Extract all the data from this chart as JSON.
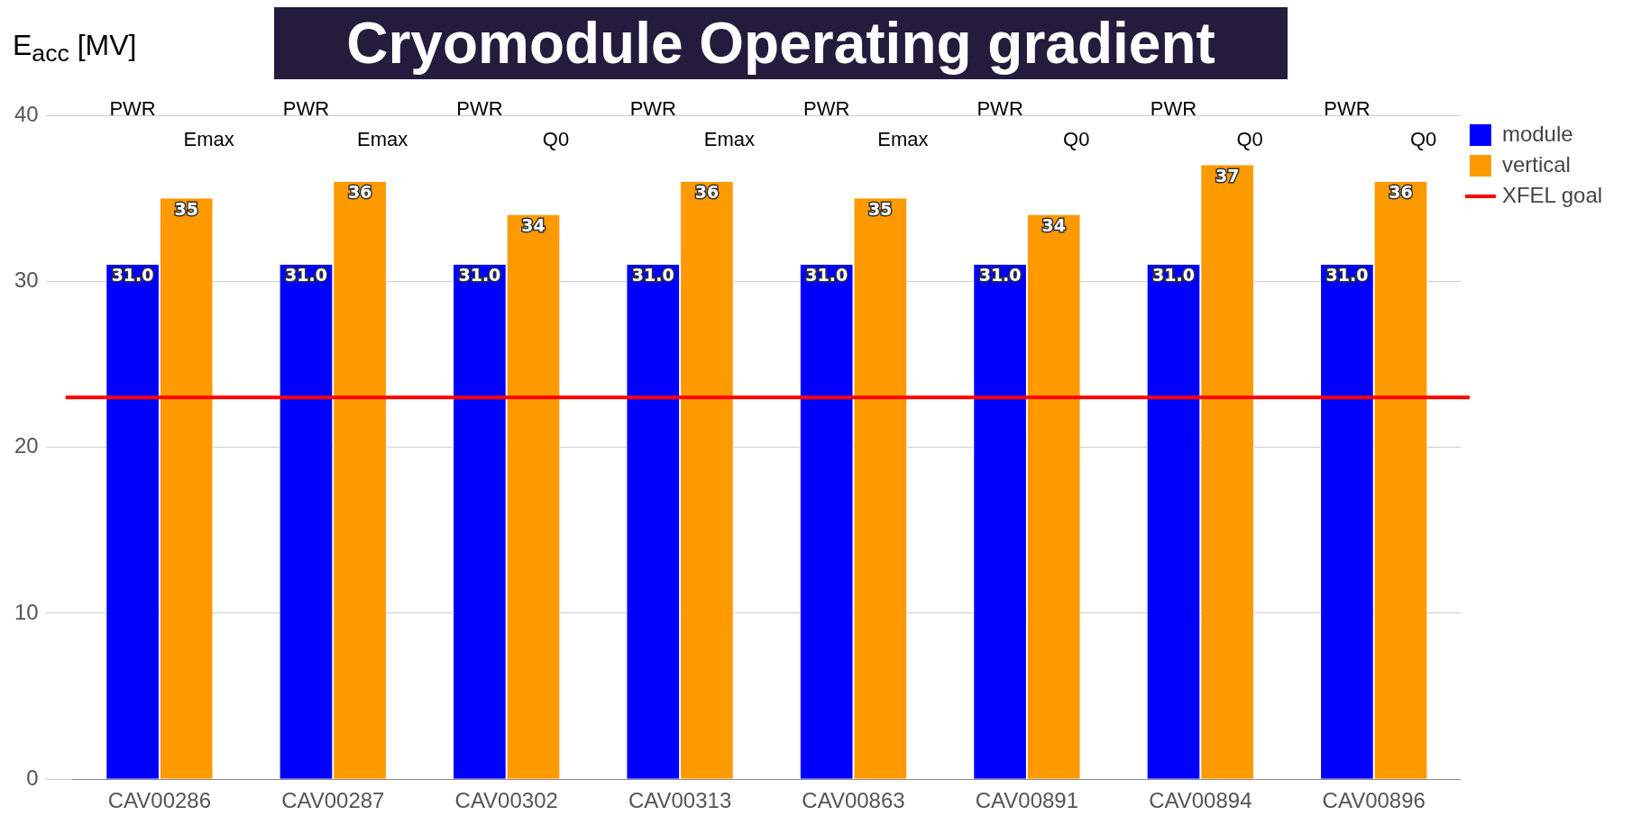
{
  "chart_data": {
    "type": "bar",
    "title": "Cryomodule Operating gradient",
    "ylabel": "E$_{acc}$ [MV]",
    "categories": [
      "CAV00286",
      "CAV00287",
      "CAV00302",
      "CAV00313",
      "CAV00863",
      "CAV00891",
      "CAV00894",
      "CAV00896"
    ],
    "series": [
      {
        "name": "module",
        "color": "#0000ff",
        "values": [
          31.0,
          31.0,
          31.0,
          31.0,
          31.0,
          31.0,
          31.0,
          31.0
        ],
        "value_labels": [
          "31.0",
          "31.0",
          "31.0",
          "31.0",
          "31.0",
          "31.0",
          "31.0",
          "31.0"
        ]
      },
      {
        "name": "vertical",
        "color": "#ff9900",
        "values": [
          35,
          36,
          34,
          36,
          35,
          34,
          37,
          36
        ],
        "value_labels": [
          "35",
          "36",
          "34",
          "36",
          "35",
          "34",
          "37",
          "36"
        ]
      }
    ],
    "ylim": [
      0,
      40
    ],
    "yticks": [
      0,
      10,
      20,
      30,
      40
    ],
    "grid": "y",
    "legend": "top right",
    "ref_lines": [
      {
        "axis": "y",
        "value": 23,
        "label": "XFEL goal",
        "color": "#ff0000"
      }
    ],
    "annotations": [
      "PWR",
      "Emax",
      "PWR",
      "Emax",
      "PWR",
      "Q0",
      "PWR",
      "Emax",
      "PWR",
      "Emax",
      "PWR",
      "Q0",
      "PWR",
      "Q0",
      "PWR",
      "Q0"
    ]
  }
}
